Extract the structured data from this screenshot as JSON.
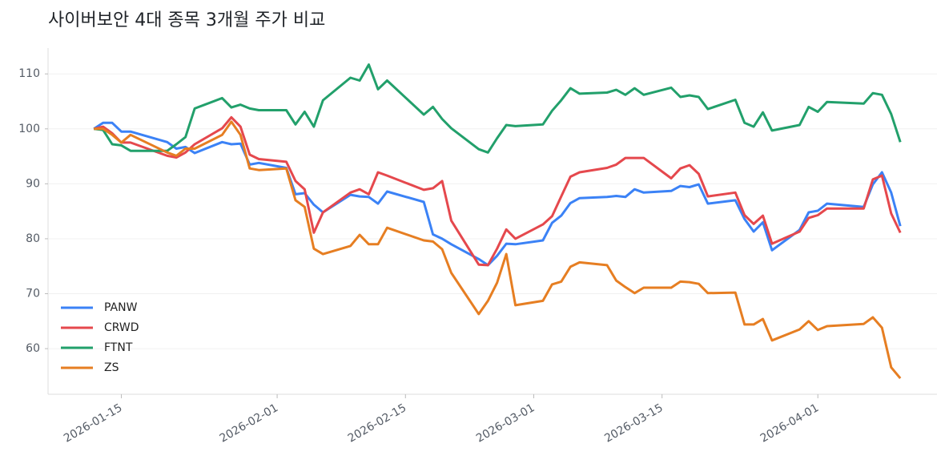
{
  "chart_data": {
    "type": "line",
    "title": "사이버보안 4대 종목 3개월 주가 비교",
    "x": [
      "2026-01-12",
      "2026-01-13",
      "2026-01-14",
      "2026-01-15",
      "2026-01-16",
      "2026-01-20",
      "2026-01-21",
      "2026-01-22",
      "2026-01-23",
      "2026-01-26",
      "2026-01-27",
      "2026-01-28",
      "2026-01-29",
      "2026-01-30",
      "2026-02-02",
      "2026-02-03",
      "2026-02-04",
      "2026-02-05",
      "2026-02-06",
      "2026-02-09",
      "2026-02-10",
      "2026-02-11",
      "2026-02-12",
      "2026-02-13",
      "2026-02-17",
      "2026-02-18",
      "2026-02-19",
      "2026-02-20",
      "2026-02-23",
      "2026-02-24",
      "2026-02-25",
      "2026-02-26",
      "2026-02-27",
      "2026-03-02",
      "2026-03-03",
      "2026-03-04",
      "2026-03-05",
      "2026-03-06",
      "2026-03-09",
      "2026-03-10",
      "2026-03-11",
      "2026-03-12",
      "2026-03-13",
      "2026-03-16",
      "2026-03-17",
      "2026-03-18",
      "2026-03-19",
      "2026-03-20",
      "2026-03-23",
      "2026-03-24",
      "2026-03-25",
      "2026-03-26",
      "2026-03-27",
      "2026-03-30",
      "2026-03-31",
      "2026-04-01",
      "2026-04-02",
      "2026-04-06",
      "2026-04-07",
      "2026-04-08",
      "2026-04-09",
      "2026-04-10"
    ],
    "series": [
      {
        "name": "PANW",
        "color": "#3b82f6",
        "values": [
          100,
          101.1,
          101.1,
          99.5,
          99.5,
          97.6,
          96.4,
          96.7,
          95.6,
          97.6,
          97.2,
          97.3,
          93.5,
          93.8,
          92.9,
          88.1,
          88.3,
          86.2,
          84.8,
          88,
          87.7,
          87.6,
          86.4,
          88.6,
          86.7,
          80.8,
          80,
          79,
          76.3,
          75.2,
          76.9,
          79.1,
          79,
          79.7,
          82.9,
          84.2,
          86.5,
          87.4,
          87.6,
          87.8,
          87.6,
          89,
          88.4,
          88.7,
          89.6,
          89.4,
          89.9,
          86.4,
          87,
          83.6,
          81.3,
          83,
          77.9,
          81.6,
          84.8,
          85.1,
          86.4,
          85.8,
          89.9,
          92.1,
          88.4,
          82.3
        ]
      },
      {
        "name": "CRWD",
        "color": "#e5484d",
        "values": [
          100,
          100.4,
          99.2,
          97.5,
          97.5,
          95.1,
          94.8,
          95.7,
          97.2,
          100.1,
          102.1,
          100.4,
          95.3,
          94.5,
          94,
          90.5,
          89,
          81.1,
          84.8,
          88.4,
          89,
          88.1,
          92.1,
          91.5,
          88.9,
          89.2,
          90.5,
          83.3,
          75.3,
          75.2,
          78.2,
          81.7,
          80,
          82.6,
          84.1,
          87.7,
          91.3,
          92.1,
          92.9,
          93.5,
          94.7,
          94.7,
          94.7,
          91,
          92.8,
          93.4,
          91.8,
          87.7,
          88.4,
          84.3,
          82.7,
          84.2,
          79.1,
          81.3,
          83.8,
          84.3,
          85.5,
          85.5,
          90.8,
          91.5,
          84.6,
          81.1
        ]
      },
      {
        "name": "FTNT",
        "color": "#22a06b",
        "values": [
          100,
          99.8,
          97.2,
          97,
          96,
          96,
          97.2,
          98.5,
          103.7,
          105.6,
          103.9,
          104.4,
          103.7,
          103.4,
          103.4,
          100.8,
          103.1,
          100.4,
          105.2,
          109.3,
          108.8,
          111.7,
          107.2,
          108.8,
          102.6,
          104,
          101.8,
          100.1,
          96.3,
          95.7,
          98.3,
          100.7,
          100.5,
          100.8,
          103.3,
          105.2,
          107.4,
          106.4,
          106.6,
          107.1,
          106.2,
          107.4,
          106.2,
          107.5,
          105.8,
          106.1,
          105.8,
          103.6,
          105.3,
          101.1,
          100.4,
          103,
          99.7,
          100.7,
          104,
          103.1,
          104.9,
          104.6,
          106.5,
          106.2,
          102.7,
          97.6
        ]
      },
      {
        "name": "ZS",
        "color": "#e67e22",
        "values": [
          100,
          100,
          98.9,
          97.5,
          98.9,
          95.7,
          95.1,
          96.4,
          96.4,
          98.9,
          101.3,
          98.9,
          92.8,
          92.5,
          92.8,
          87,
          85.8,
          78.2,
          77.2,
          78.7,
          80.7,
          79,
          79,
          82,
          79.7,
          79.5,
          78.1,
          73.8,
          66.3,
          68.7,
          72,
          77.2,
          67.9,
          68.7,
          71.7,
          72.2,
          74.9,
          75.7,
          75.2,
          72.4,
          71.2,
          70.1,
          71.1,
          71.1,
          72.2,
          72.1,
          71.8,
          70.1,
          70.2,
          64.4,
          64.4,
          65.4,
          61.5,
          63.5,
          65,
          63.4,
          64.1,
          64.5,
          65.7,
          63.8,
          56.6,
          54.6
        ]
      }
    ],
    "xlim": [
      "2026-01-07",
      "2026-04-14"
    ],
    "xticks": [
      "2026-01-15",
      "2026-02-01",
      "2026-02-15",
      "2026-03-01",
      "2026-03-15",
      "2026-04-01"
    ],
    "ylim": [
      51.7,
      114.7
    ],
    "yticks": [
      60,
      70,
      80,
      90,
      100,
      110
    ],
    "grid": true,
    "legend": "lower-left"
  }
}
